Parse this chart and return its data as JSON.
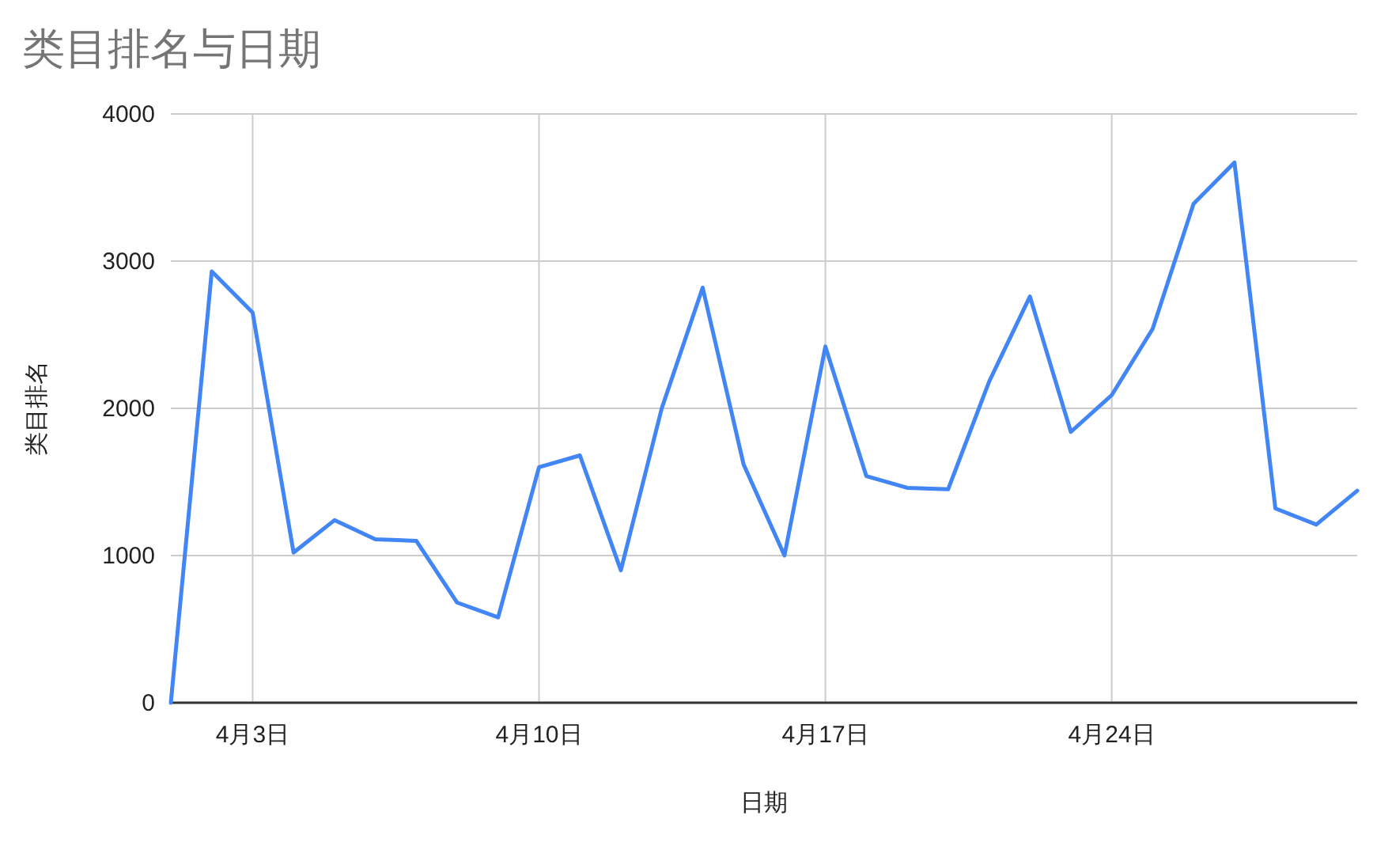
{
  "chart_data": {
    "type": "line",
    "title": "类目排名与日期",
    "xlabel": "日期",
    "ylabel": "类目排名",
    "x": [
      "--04-01",
      "--04-02",
      "--04-03",
      "--04-04",
      "--04-05",
      "--04-06",
      "--04-07",
      "--04-08",
      "--04-09",
      "--04-10",
      "--04-11",
      "--04-12",
      "--04-13",
      "--04-14",
      "--04-15",
      "--04-16",
      "--04-17",
      "--04-18",
      "--04-19",
      "--04-20",
      "--04-21",
      "--04-22",
      "--04-23",
      "--04-24",
      "--04-25",
      "--04-26",
      "--04-27",
      "--04-28",
      "--04-29",
      "--04-30"
    ],
    "series": [
      {
        "color": "#4285f4",
        "values": [
          0,
          2930,
          2650,
          1020,
          1240,
          1110,
          1100,
          680,
          580,
          1600,
          1680,
          900,
          2000,
          2820,
          1620,
          1000,
          2420,
          1540,
          1460,
          1450,
          2180,
          2760,
          1840,
          2090,
          2540,
          3390,
          3670,
          1320,
          1210,
          1440
        ]
      }
    ],
    "xlim": [
      "--04-01",
      "--04-30"
    ],
    "xticks": [
      {
        "value": "--04-03",
        "label": "4月3日"
      },
      {
        "value": "--04-10",
        "label": "4月10日"
      },
      {
        "value": "--04-17",
        "label": "4月17日"
      },
      {
        "value": "--04-24",
        "label": "4月24日"
      }
    ],
    "ylim": [
      0,
      4000
    ],
    "yticks": [
      0,
      1000,
      2000,
      3000,
      4000
    ],
    "grid": true,
    "marker": "none",
    "line_style": "solid"
  }
}
